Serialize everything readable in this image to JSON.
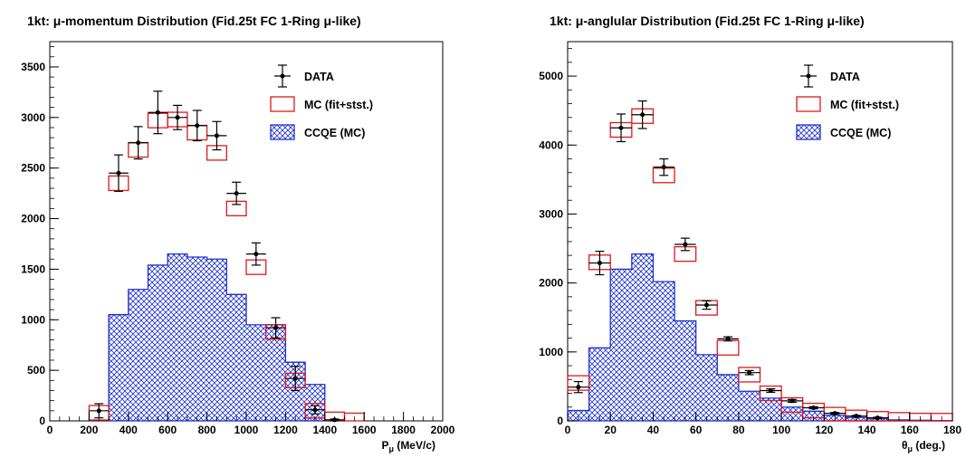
{
  "chart_data": [
    {
      "type": "histogram",
      "title_bold": "1kt",
      "title_rest": ": μ-momentum Distribution (Fid.25t FC 1-Ring μ-like)",
      "xlabel": "P",
      "xlabel_sub": "μ",
      "xlabel_unit": " (MeV/c)",
      "ylabel": "",
      "xlim": [
        0,
        2000
      ],
      "ylim": [
        0,
        3750
      ],
      "xticks": [
        0,
        200,
        400,
        600,
        800,
        1000,
        1200,
        1400,
        1600,
        1800,
        2000
      ],
      "yticks": [
        0,
        500,
        1000,
        1500,
        2000,
        2500,
        3000,
        3500
      ],
      "bin_width": 100,
      "legend": {
        "position": "top-right",
        "entries": [
          "DATA",
          "MC (fit+stst.)",
          "CCQE (MC)"
        ]
      },
      "ccqe": {
        "name": "CCQE (MC)",
        "bins": [
          [
            300,
            1050
          ],
          [
            400,
            1300
          ],
          [
            500,
            1540
          ],
          [
            600,
            1650
          ],
          [
            700,
            1620
          ],
          [
            800,
            1600
          ],
          [
            900,
            1250
          ],
          [
            1000,
            950
          ],
          [
            1100,
            950
          ],
          [
            1200,
            580
          ],
          [
            1300,
            360
          ],
          [
            1400,
            0
          ]
        ]
      },
      "mc": {
        "name": "MC (fit+stst.)",
        "points": [
          [
            250,
            80
          ],
          [
            350,
            2350
          ],
          [
            450,
            2680
          ],
          [
            550,
            2970
          ],
          [
            650,
            2980
          ],
          [
            750,
            2850
          ],
          [
            850,
            2650
          ],
          [
            950,
            2100
          ],
          [
            1050,
            1520
          ],
          [
            1150,
            880
          ],
          [
            1250,
            400
          ],
          [
            1350,
            100
          ],
          [
            1450,
            15
          ],
          [
            1550,
            5
          ]
        ]
      },
      "data": {
        "name": "DATA",
        "points": [
          [
            250,
            100,
            70
          ],
          [
            350,
            2450,
            180
          ],
          [
            450,
            2750,
            160
          ],
          [
            550,
            3050,
            210
          ],
          [
            650,
            3000,
            120
          ],
          [
            750,
            2920,
            150
          ],
          [
            850,
            2820,
            140
          ],
          [
            950,
            2250,
            110
          ],
          [
            1050,
            1650,
            110
          ],
          [
            1150,
            920,
            100
          ],
          [
            1250,
            420,
            120
          ],
          [
            1350,
            110,
            40
          ],
          [
            1450,
            10,
            8
          ]
        ]
      }
    },
    {
      "type": "histogram",
      "title_bold": "1kt",
      "title_rest": ": μ-anglular Distribution (Fid.25t FC 1-Ring μ-like)",
      "xlabel": "θ",
      "xlabel_sub": "μ",
      "xlabel_unit": " (deg.)",
      "ylabel": "",
      "xlim": [
        0,
        180
      ],
      "ylim": [
        0,
        5500
      ],
      "xticks": [
        0,
        20,
        40,
        60,
        80,
        100,
        120,
        140,
        160,
        180
      ],
      "yticks": [
        0,
        1000,
        2000,
        3000,
        4000,
        5000
      ],
      "bin_width": 10,
      "legend": {
        "position": "top-right",
        "entries": [
          "DATA",
          "MC (fit+stst.)",
          "CCQE (MC)"
        ]
      },
      "ccqe": {
        "name": "CCQE (MC)",
        "bins": [
          [
            0,
            150
          ],
          [
            10,
            1060
          ],
          [
            20,
            2200
          ],
          [
            30,
            2420
          ],
          [
            40,
            2020
          ],
          [
            50,
            1450
          ],
          [
            60,
            960
          ],
          [
            70,
            670
          ],
          [
            80,
            430
          ],
          [
            90,
            330
          ],
          [
            100,
            200
          ],
          [
            110,
            140
          ],
          [
            120,
            80
          ],
          [
            130,
            50
          ],
          [
            140,
            30
          ],
          [
            150,
            15
          ],
          [
            160,
            10
          ],
          [
            170,
            5
          ]
        ]
      },
      "mc": {
        "name": "MC (fit+stst.)",
        "points": [
          [
            5,
            550
          ],
          [
            15,
            2300
          ],
          [
            25,
            4220
          ],
          [
            35,
            4420
          ],
          [
            45,
            3560
          ],
          [
            55,
            2420
          ],
          [
            65,
            1640
          ],
          [
            75,
            1060
          ],
          [
            85,
            670
          ],
          [
            95,
            400
          ],
          [
            105,
            230
          ],
          [
            115,
            150
          ],
          [
            125,
            90
          ],
          [
            135,
            50
          ],
          [
            145,
            30
          ],
          [
            155,
            15
          ],
          [
            165,
            5
          ],
          [
            175,
            3
          ]
        ]
      },
      "data": {
        "name": "DATA",
        "points": [
          [
            5,
            490,
            80
          ],
          [
            15,
            2290,
            170
          ],
          [
            25,
            4250,
            200
          ],
          [
            35,
            4440,
            200
          ],
          [
            45,
            3680,
            120
          ],
          [
            55,
            2560,
            90
          ],
          [
            65,
            1680,
            60
          ],
          [
            75,
            1190,
            30
          ],
          [
            85,
            700,
            30
          ],
          [
            95,
            440,
            25
          ],
          [
            105,
            290,
            20
          ],
          [
            115,
            190,
            15
          ],
          [
            125,
            110,
            12
          ],
          [
            135,
            70,
            10
          ],
          [
            145,
            45,
            8
          ]
        ]
      }
    }
  ],
  "colors": {
    "ccqe_blue": "#1c2fd0",
    "mc_red": "#e01818",
    "data_black": "#000000"
  },
  "icons": {
    "ccqe_fill": "crosshatch-pattern",
    "data_marker": "dot-with-error-bars",
    "mc_marker": "open-box"
  }
}
